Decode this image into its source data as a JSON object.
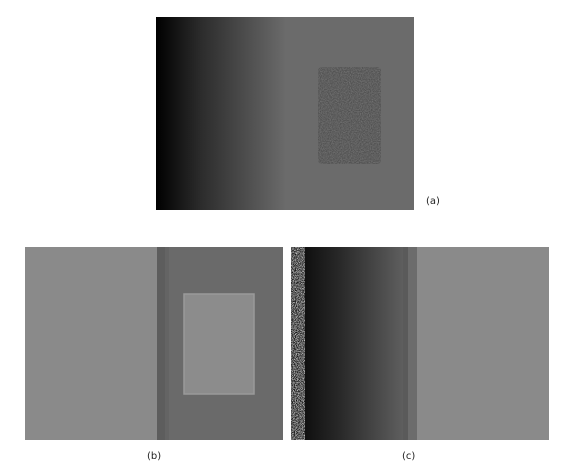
{
  "figure": {
    "captions": {
      "a": "(a)",
      "b": "(b)",
      "c": "(c)"
    },
    "colors": {
      "background": "#ffffff",
      "gray_light": "#8b8b8b",
      "gray_mid": "#6e6e6e",
      "gray_dark_band": "#5a5a5a",
      "gradient_dark": "#000000",
      "noise_base": "#4a4a4a"
    }
  }
}
